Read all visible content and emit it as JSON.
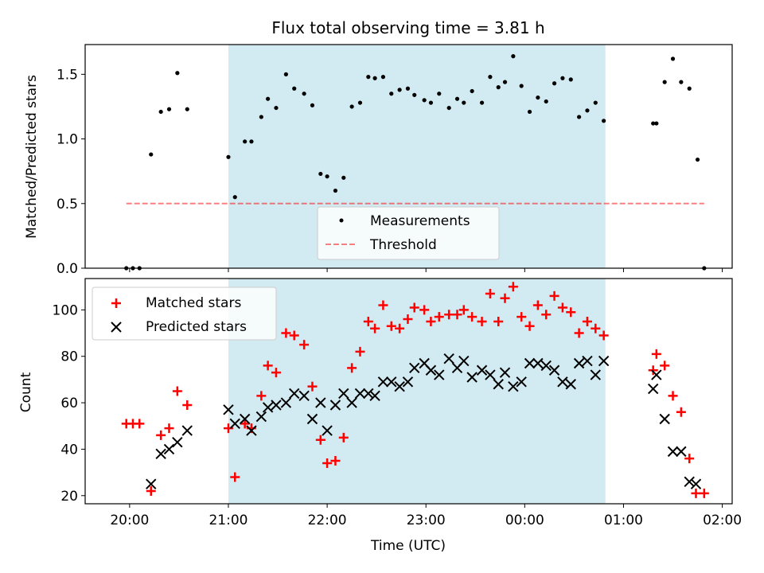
{
  "title": "Flux total observing time = 3.81 h",
  "xlabel": "Time (UTC)",
  "colors": {
    "shade": "#add8e6",
    "measure": "#000000",
    "threshold": "#ff0000",
    "matched": "#ff0000",
    "predicted": "#000000"
  },
  "chart_data": [
    {
      "type": "scatter",
      "ylabel": "Matched/Predicted stars",
      "xlim": [
        "19:33",
        "02:06"
      ],
      "ylim": [
        0,
        1.73
      ],
      "yticks": [
        0.0,
        0.5,
        1.0,
        1.5
      ],
      "ytick_labels": [
        "0.0",
        "0.5",
        "1.0",
        "1.5"
      ],
      "shaded_region": [
        "21:00",
        "00:49"
      ],
      "legend_position": "lower center",
      "series": [
        {
          "name": "Measurements",
          "marker": "dot",
          "points": [
            [
              "19:58",
              0.0
            ],
            [
              "20:02",
              0.0
            ],
            [
              "20:06",
              0.0
            ],
            [
              "20:13",
              0.88
            ],
            [
              "20:19",
              1.21
            ],
            [
              "20:24",
              1.23
            ],
            [
              "20:29",
              1.51
            ],
            [
              "20:35",
              1.23
            ],
            [
              "21:00",
              0.86
            ],
            [
              "21:04",
              0.55
            ],
            [
              "21:10",
              0.98
            ],
            [
              "21:14",
              0.98
            ],
            [
              "21:20",
              1.17
            ],
            [
              "21:24",
              1.31
            ],
            [
              "21:29",
              1.24
            ],
            [
              "21:35",
              1.5
            ],
            [
              "21:40",
              1.39
            ],
            [
              "21:46",
              1.35
            ],
            [
              "21:51",
              1.26
            ],
            [
              "21:56",
              0.73
            ],
            [
              "22:00",
              0.71
            ],
            [
              "22:05",
              0.6
            ],
            [
              "22:10",
              0.7
            ],
            [
              "22:15",
              1.25
            ],
            [
              "22:20",
              1.28
            ],
            [
              "22:25",
              1.48
            ],
            [
              "22:29",
              1.47
            ],
            [
              "22:34",
              1.48
            ],
            [
              "22:39",
              1.35
            ],
            [
              "22:44",
              1.38
            ],
            [
              "22:49",
              1.39
            ],
            [
              "22:53",
              1.34
            ],
            [
              "22:59",
              1.3
            ],
            [
              "23:03",
              1.28
            ],
            [
              "23:08",
              1.35
            ],
            [
              "23:14",
              1.24
            ],
            [
              "23:19",
              1.31
            ],
            [
              "23:23",
              1.28
            ],
            [
              "23:28",
              1.37
            ],
            [
              "23:34",
              1.28
            ],
            [
              "23:39",
              1.48
            ],
            [
              "23:44",
              1.4
            ],
            [
              "23:48",
              1.44
            ],
            [
              "23:53",
              1.64
            ],
            [
              "23:58",
              1.41
            ],
            [
              "00:03",
              1.21
            ],
            [
              "00:08",
              1.32
            ],
            [
              "00:13",
              1.29
            ],
            [
              "00:18",
              1.43
            ],
            [
              "00:23",
              1.47
            ],
            [
              "00:28",
              1.46
            ],
            [
              "00:33",
              1.17
            ],
            [
              "00:38",
              1.22
            ],
            [
              "00:43",
              1.28
            ],
            [
              "00:48",
              1.14
            ],
            [
              "01:18",
              1.12
            ],
            [
              "01:20",
              1.12
            ],
            [
              "01:25",
              1.44
            ],
            [
              "01:30",
              1.62
            ],
            [
              "01:35",
              1.44
            ],
            [
              "01:40",
              1.39
            ],
            [
              "01:45",
              0.84
            ],
            [
              "01:49",
              0.0
            ]
          ]
        },
        {
          "name": "Threshold",
          "style": "dashed",
          "points": [
            [
              "19:58",
              0.5
            ],
            [
              "01:49",
              0.5
            ]
          ]
        }
      ]
    },
    {
      "type": "scatter",
      "ylabel": "Count",
      "xlim": [
        "19:33",
        "02:06"
      ],
      "ylim": [
        16.5,
        113.5
      ],
      "yticks": [
        20,
        40,
        60,
        80,
        100
      ],
      "xticks": [
        "20:00",
        "21:00",
        "22:00",
        "23:00",
        "00:00",
        "01:00",
        "02:00"
      ],
      "shaded_region": [
        "21:00",
        "00:49"
      ],
      "legend_position": "upper left",
      "series": [
        {
          "name": "Matched stars",
          "marker": "plus",
          "points": [
            [
              "19:58",
              51
            ],
            [
              "20:02",
              51
            ],
            [
              "20:06",
              51
            ],
            [
              "20:13",
              22
            ],
            [
              "20:19",
              46
            ],
            [
              "20:24",
              49
            ],
            [
              "20:29",
              65
            ],
            [
              "20:35",
              59
            ],
            [
              "21:00",
              49
            ],
            [
              "21:04",
              28
            ],
            [
              "21:10",
              51
            ],
            [
              "21:14",
              49
            ],
            [
              "21:20",
              63
            ],
            [
              "21:24",
              76
            ],
            [
              "21:29",
              73
            ],
            [
              "21:35",
              90
            ],
            [
              "21:40",
              89
            ],
            [
              "21:46",
              85
            ],
            [
              "21:51",
              67
            ],
            [
              "21:56",
              44
            ],
            [
              "22:00",
              34
            ],
            [
              "22:05",
              35
            ],
            [
              "22:10",
              45
            ],
            [
              "22:15",
              75
            ],
            [
              "22:20",
              82
            ],
            [
              "22:25",
              95
            ],
            [
              "22:29",
              92
            ],
            [
              "22:34",
              102
            ],
            [
              "22:39",
              93
            ],
            [
              "22:44",
              92
            ],
            [
              "22:49",
              96
            ],
            [
              "22:53",
              101
            ],
            [
              "22:59",
              100
            ],
            [
              "23:03",
              95
            ],
            [
              "23:08",
              97
            ],
            [
              "23:14",
              98
            ],
            [
              "23:19",
              98
            ],
            [
              "23:23",
              100
            ],
            [
              "23:28",
              97
            ],
            [
              "23:34",
              95
            ],
            [
              "23:39",
              107
            ],
            [
              "23:44",
              95
            ],
            [
              "23:48",
              105
            ],
            [
              "23:53",
              110
            ],
            [
              "23:58",
              97
            ],
            [
              "00:03",
              93
            ],
            [
              "00:08",
              102
            ],
            [
              "00:13",
              98
            ],
            [
              "00:18",
              106
            ],
            [
              "00:23",
              101
            ],
            [
              "00:28",
              99
            ],
            [
              "00:33",
              90
            ],
            [
              "00:38",
              95
            ],
            [
              "00:43",
              92
            ],
            [
              "00:48",
              89
            ],
            [
              "01:18",
              74
            ],
            [
              "01:20",
              81
            ],
            [
              "01:25",
              76
            ],
            [
              "01:30",
              63
            ],
            [
              "01:35",
              56
            ],
            [
              "01:40",
              36
            ],
            [
              "01:44",
              21
            ],
            [
              "01:49",
              21
            ]
          ]
        },
        {
          "name": "Predicted stars",
          "marker": "x",
          "points": [
            [
              "20:13",
              25
            ],
            [
              "20:19",
              38
            ],
            [
              "20:24",
              40
            ],
            [
              "20:29",
              43
            ],
            [
              "20:35",
              48
            ],
            [
              "21:00",
              57
            ],
            [
              "21:04",
              51
            ],
            [
              "21:10",
              53
            ],
            [
              "21:14",
              48
            ],
            [
              "21:20",
              54
            ],
            [
              "21:24",
              58
            ],
            [
              "21:29",
              59
            ],
            [
              "21:35",
              60
            ],
            [
              "21:40",
              64
            ],
            [
              "21:46",
              63
            ],
            [
              "21:51",
              53
            ],
            [
              "21:56",
              60
            ],
            [
              "22:00",
              48
            ],
            [
              "22:05",
              59
            ],
            [
              "22:10",
              64
            ],
            [
              "22:15",
              60
            ],
            [
              "22:20",
              64
            ],
            [
              "22:25",
              64
            ],
            [
              "22:29",
              63
            ],
            [
              "22:34",
              69
            ],
            [
              "22:39",
              69
            ],
            [
              "22:44",
              67
            ],
            [
              "22:49",
              69
            ],
            [
              "22:53",
              75
            ],
            [
              "22:59",
              77
            ],
            [
              "23:03",
              74
            ],
            [
              "23:08",
              72
            ],
            [
              "23:14",
              79
            ],
            [
              "23:19",
              75
            ],
            [
              "23:23",
              78
            ],
            [
              "23:28",
              71
            ],
            [
              "23:34",
              74
            ],
            [
              "23:39",
              72
            ],
            [
              "23:44",
              68
            ],
            [
              "23:48",
              73
            ],
            [
              "23:53",
              67
            ],
            [
              "23:58",
              69
            ],
            [
              "00:03",
              77
            ],
            [
              "00:08",
              77
            ],
            [
              "00:13",
              76
            ],
            [
              "00:18",
              74
            ],
            [
              "00:23",
              69
            ],
            [
              "00:28",
              68
            ],
            [
              "00:33",
              77
            ],
            [
              "00:38",
              78
            ],
            [
              "00:43",
              72
            ],
            [
              "00:48",
              78
            ],
            [
              "01:18",
              66
            ],
            [
              "01:20",
              72
            ],
            [
              "01:25",
              53
            ],
            [
              "01:30",
              39
            ],
            [
              "01:35",
              39
            ],
            [
              "01:40",
              26
            ],
            [
              "01:44",
              25
            ]
          ]
        }
      ]
    }
  ]
}
